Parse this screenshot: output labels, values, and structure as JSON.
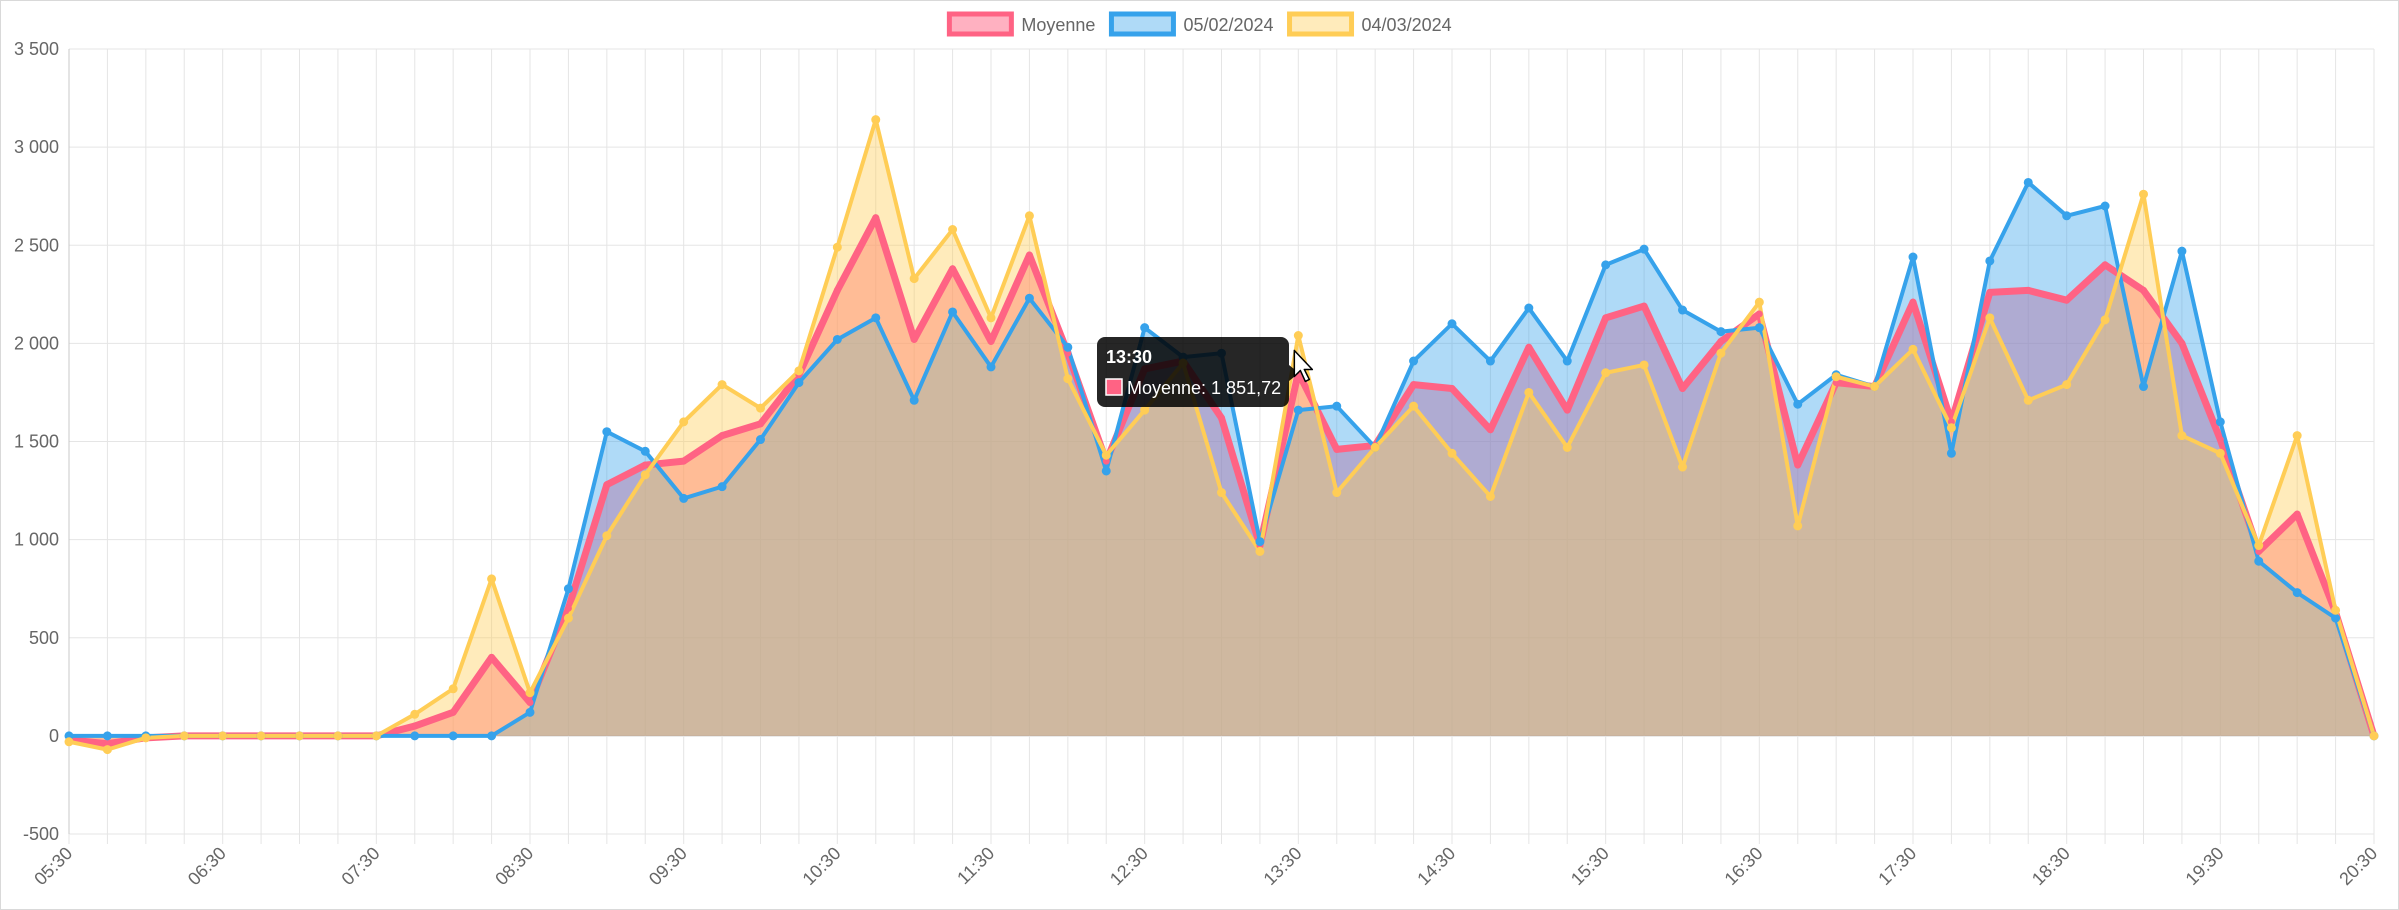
{
  "chart_data": {
    "type": "area",
    "categories": [
      "05:30",
      "05:45",
      "06:00",
      "06:15",
      "06:30",
      "06:45",
      "07:00",
      "07:15",
      "07:30",
      "07:45",
      "08:00",
      "08:15",
      "08:30",
      "08:45",
      "09:00",
      "09:15",
      "09:30",
      "09:45",
      "10:00",
      "10:15",
      "10:30",
      "10:45",
      "11:00",
      "11:15",
      "11:30",
      "11:45",
      "12:00",
      "12:15",
      "12:30",
      "12:45",
      "13:00",
      "13:15",
      "13:30",
      "13:45",
      "14:00",
      "14:15",
      "14:30",
      "14:45",
      "15:00",
      "15:15",
      "15:30",
      "15:45",
      "16:00",
      "16:15",
      "16:30",
      "16:45",
      "17:00",
      "17:15",
      "17:30",
      "17:45",
      "18:00",
      "18:15",
      "18:30",
      "18:45",
      "19:00",
      "19:15",
      "19:30",
      "19:45",
      "20:00",
      "20:15",
      "20:30"
    ],
    "x_tick_labels": [
      "05:30",
      "06:30",
      "07:30",
      "08:30",
      "09:30",
      "10:30",
      "11:30",
      "12:30",
      "13:30",
      "14:30",
      "15:30",
      "16:30",
      "17:30",
      "18:30",
      "19:30",
      "20:30"
    ],
    "ylim": [
      -500,
      3500
    ],
    "y_tick_values": [
      -500,
      0,
      500,
      1000,
      1500,
      2000,
      2500,
      3000,
      3500
    ],
    "y_tick_labels": [
      "-500",
      "0",
      "500",
      "1 000",
      "1 500",
      "2 000",
      "2 500",
      "3 000",
      "3 500"
    ],
    "grid": true,
    "legend_position": "top",
    "series": [
      {
        "name": "Moyenne",
        "color": "#ff6384",
        "fill": "rgba(255,99,132,0.5)",
        "values": [
          -20,
          -40,
          -10,
          0,
          0,
          0,
          0,
          0,
          0,
          50,
          120,
          400,
          170,
          650,
          1280,
          1380,
          1400,
          1530,
          1590,
          1840,
          2270,
          2640,
          2020,
          2380,
          2010,
          2450,
          1950,
          1400,
          1870,
          1910,
          1620,
          970,
          1851.72,
          1460,
          1480,
          1790,
          1770,
          1560,
          1980,
          1660,
          2130,
          2190,
          1770,
          2010,
          2150,
          1380,
          1800,
          1780,
          2210,
          1600,
          2260,
          2270,
          2220,
          2400,
          2270,
          2000,
          1510,
          940,
          1130,
          630,
          0
        ]
      },
      {
        "name": "05/02/2024",
        "color": "#36a2eb",
        "fill": "rgba(54,162,235,0.4)",
        "values": [
          0,
          0,
          0,
          0,
          0,
          0,
          0,
          0,
          0,
          0,
          0,
          0,
          120,
          750,
          1550,
          1450,
          1210,
          1270,
          1510,
          1800,
          2020,
          2130,
          1710,
          2160,
          1880,
          2230,
          1980,
          1350,
          2080,
          1930,
          1950,
          990,
          1660,
          1680,
          1470,
          1910,
          2100,
          1910,
          2180,
          1910,
          2400,
          2480,
          2170,
          2060,
          2080,
          1690,
          1840,
          1780,
          2440,
          1440,
          2420,
          2820,
          2650,
          2700,
          1780,
          2470,
          1600,
          890,
          730,
          600,
          0
        ]
      },
      {
        "name": "04/03/2024",
        "color": "#ffcd56",
        "fill": "rgba(255,205,86,0.4)",
        "values": [
          -30,
          -70,
          -10,
          0,
          0,
          0,
          0,
          0,
          0,
          110,
          240,
          800,
          220,
          600,
          1020,
          1330,
          1600,
          1790,
          1670,
          1860,
          2490,
          3140,
          2330,
          2580,
          2130,
          2650,
          1820,
          1430,
          1660,
          1900,
          1240,
          940,
          2040,
          1240,
          1470,
          1680,
          1440,
          1220,
          1750,
          1470,
          1850,
          1890,
          1370,
          1950,
          2210,
          1070,
          1830,
          1780,
          1970,
          1570,
          2130,
          1710,
          1790,
          2120,
          2760,
          1530,
          1440,
          970,
          1530,
          640,
          0
        ]
      }
    ],
    "tooltip": {
      "title": "13:30",
      "series": "Moyenne",
      "label": "Moyenne: 1 851,72",
      "index": 32
    }
  }
}
